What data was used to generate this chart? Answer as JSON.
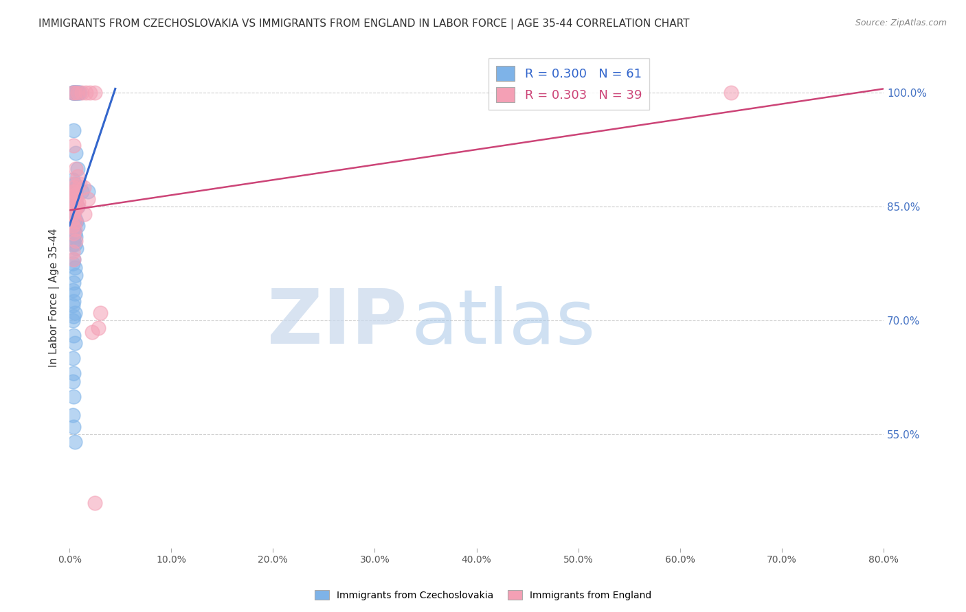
{
  "title": "IMMIGRANTS FROM CZECHOSLOVAKIA VS IMMIGRANTS FROM ENGLAND IN LABOR FORCE | AGE 35-44 CORRELATION CHART",
  "source": "Source: ZipAtlas.com",
  "ylabel": "In Labor Force | Age 35-44",
  "xlim": [
    0.0,
    80.0
  ],
  "ylim": [
    40.0,
    106.0
  ],
  "xticklabels": [
    "0.0%",
    "10.0%",
    "20.0%",
    "30.0%",
    "40.0%",
    "50.0%",
    "60.0%",
    "70.0%",
    "80.0%"
  ],
  "xtickvalues": [
    0,
    10,
    20,
    30,
    40,
    50,
    60,
    70,
    80
  ],
  "right_ytick_values": [
    55.0,
    70.0,
    85.0,
    100.0
  ],
  "right_ytick_labels": [
    "55.0%",
    "70.0%",
    "85.0%",
    "100.0%"
  ],
  "grid_color": "#cccccc",
  "background_color": "#ffffff",
  "blue_color": "#7EB3E8",
  "pink_color": "#F4A0B5",
  "blue_line_color": "#3366CC",
  "pink_line_color": "#CC4477",
  "R_blue": 0.3,
  "N_blue": 61,
  "R_pink": 0.303,
  "N_pink": 39,
  "watermark_zip": "ZIP",
  "watermark_atlas": "atlas",
  "legend_label_blue": "Immigrants from Czechoslovakia",
  "legend_label_pink": "Immigrants from England",
  "blue_scatter_x": [
    0.3,
    0.5,
    0.8,
    0.4,
    0.6,
    0.9,
    0.3,
    0.5,
    0.7,
    1.0,
    0.4,
    0.6,
    0.8,
    0.3,
    0.5,
    0.7,
    0.4,
    0.6,
    0.5,
    0.3,
    0.4,
    0.6,
    0.8,
    1.2,
    0.3,
    0.4,
    0.5,
    0.6,
    0.7,
    0.8,
    0.4,
    0.3,
    0.5,
    0.6,
    0.4,
    0.3,
    0.5,
    0.7,
    0.4,
    0.3,
    0.5,
    0.6,
    0.4,
    0.3,
    0.5,
    0.4,
    0.3,
    0.5,
    0.4,
    0.3,
    0.4,
    0.5,
    0.3,
    0.4,
    0.3,
    0.4,
    0.3,
    1.8,
    0.3,
    0.4,
    0.5
  ],
  "blue_scatter_y": [
    100.0,
    100.0,
    100.0,
    100.0,
    100.0,
    100.0,
    100.0,
    100.0,
    100.0,
    100.0,
    95.0,
    92.0,
    90.0,
    88.5,
    88.0,
    87.5,
    87.0,
    87.0,
    86.5,
    86.0,
    85.5,
    85.5,
    85.0,
    87.0,
    84.5,
    84.0,
    83.5,
    83.0,
    83.0,
    82.5,
    82.0,
    82.5,
    81.5,
    81.0,
    80.5,
    80.0,
    80.0,
    79.5,
    78.0,
    77.5,
    77.0,
    76.0,
    75.0,
    74.0,
    73.5,
    72.5,
    72.0,
    71.0,
    70.5,
    70.0,
    68.0,
    67.0,
    65.0,
    63.0,
    62.0,
    60.0,
    57.5,
    87.0,
    82.0,
    56.0,
    54.0
  ],
  "pink_scatter_x": [
    0.3,
    0.5,
    0.8,
    1.2,
    1.6,
    2.0,
    2.5,
    0.4,
    0.6,
    0.8,
    1.0,
    1.4,
    0.3,
    0.5,
    0.7,
    0.9,
    0.4,
    0.6,
    0.8,
    0.5,
    0.3,
    0.4,
    0.6,
    0.3,
    0.5,
    0.4,
    0.6,
    0.3,
    0.4,
    0.5,
    2.2,
    3.0,
    0.4,
    0.3,
    0.5,
    2.8,
    1.8,
    0.6,
    1.5
  ],
  "pink_scatter_y": [
    100.0,
    100.0,
    100.0,
    100.0,
    100.0,
    100.0,
    100.0,
    93.0,
    90.0,
    89.0,
    88.0,
    87.5,
    87.0,
    86.5,
    86.0,
    85.5,
    85.5,
    85.0,
    85.0,
    84.5,
    84.0,
    83.5,
    83.0,
    82.5,
    82.0,
    81.5,
    80.5,
    79.0,
    78.0,
    87.0,
    68.5,
    71.0,
    87.5,
    88.0,
    86.5,
    69.0,
    86.0,
    85.0,
    84.0
  ],
  "pink_outlier_x": [
    2.5
  ],
  "pink_outlier_y": [
    46.0
  ],
  "pink_far_x": [
    65.0
  ],
  "pink_far_y": [
    100.0
  ],
  "blue_trend_x0": 0.0,
  "blue_trend_y0": 82.5,
  "blue_trend_x1": 4.5,
  "blue_trend_y1": 100.5,
  "pink_trend_x0": 0.0,
  "pink_trend_y0": 84.5,
  "pink_trend_x1": 80.0,
  "pink_trend_y1": 100.5
}
